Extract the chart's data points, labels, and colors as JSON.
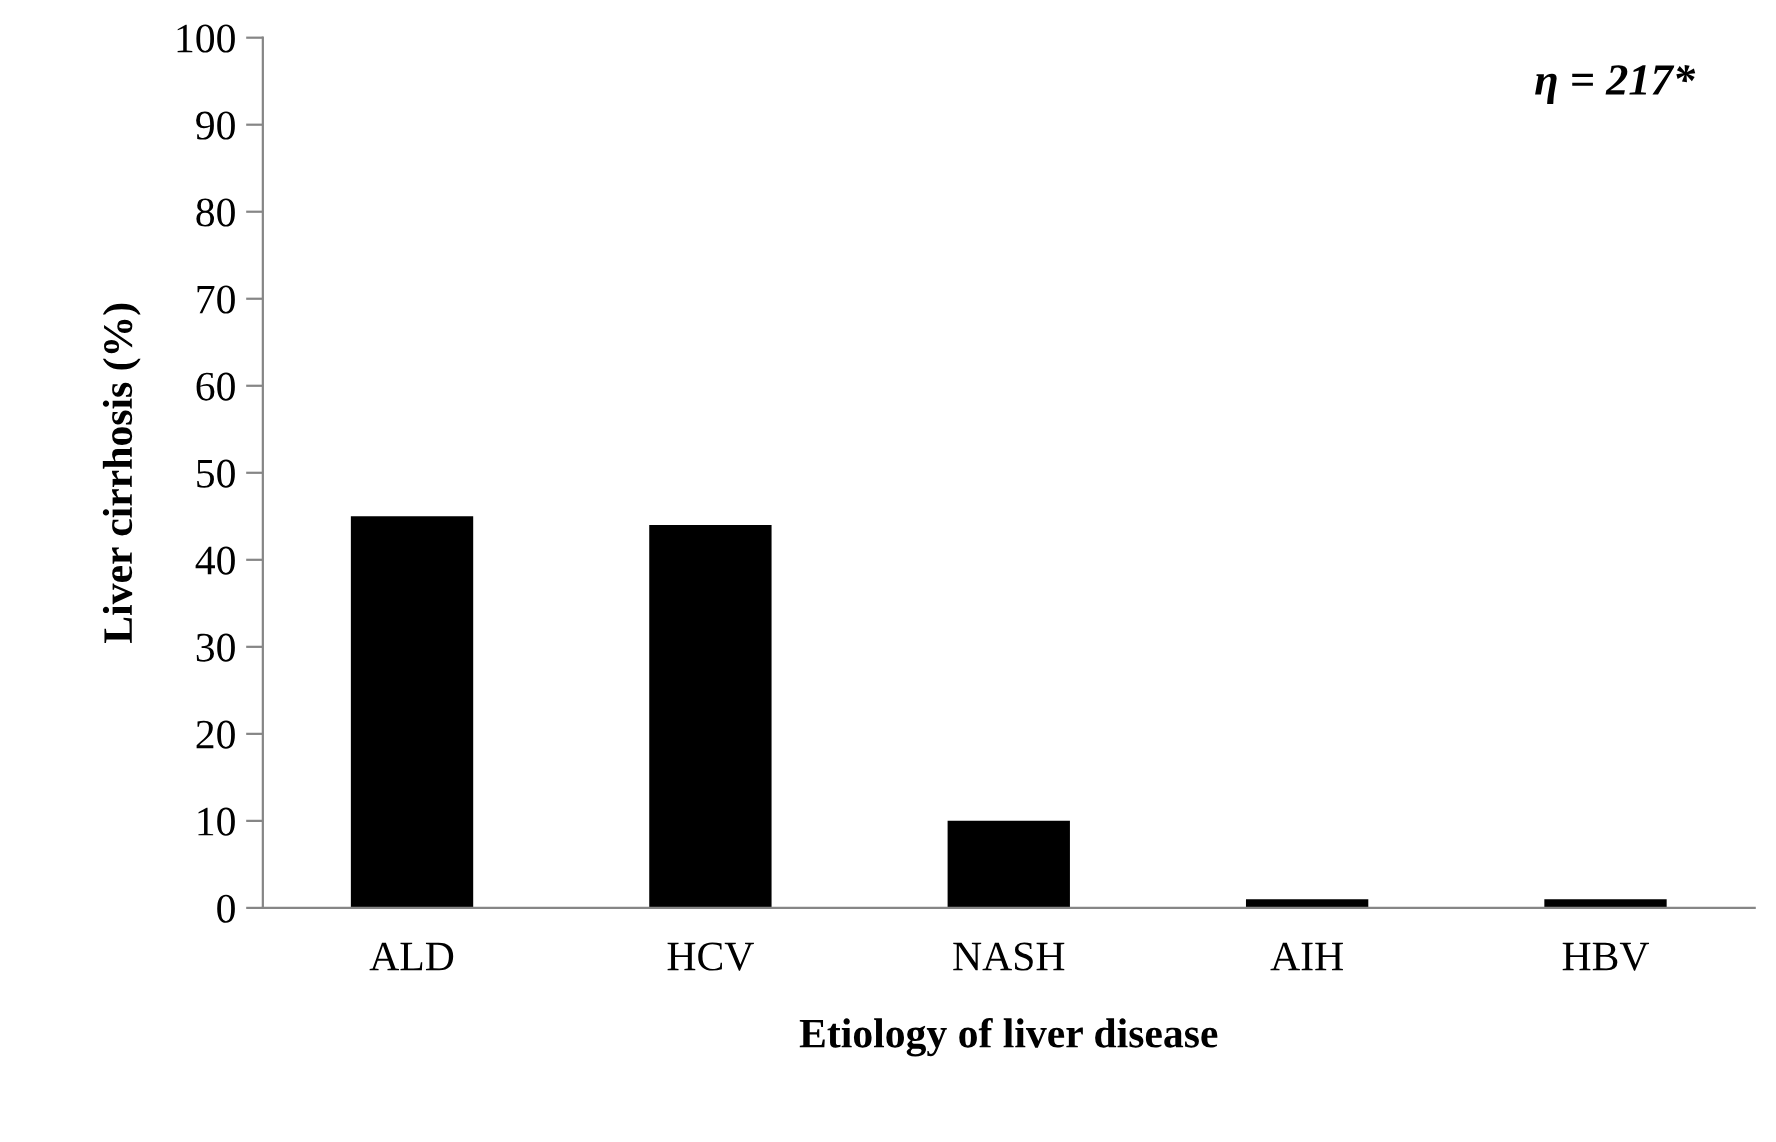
{
  "chart_data": {
    "type": "bar",
    "categories": [
      "ALD",
      "HCV",
      "NASH",
      "AIH",
      "HBV"
    ],
    "values": [
      45,
      44,
      10,
      1,
      1
    ],
    "color": "#000000",
    "xlabel": "Etiology of liver disease",
    "ylabel": "Liver cirrhosis (%)",
    "ylim": [
      0,
      100
    ],
    "yticks": [
      0,
      10,
      20,
      30,
      40,
      50,
      60,
      70,
      80,
      90,
      100
    ],
    "annotations": [
      "η = 217*"
    ],
    "grid": false,
    "legend": false
  }
}
